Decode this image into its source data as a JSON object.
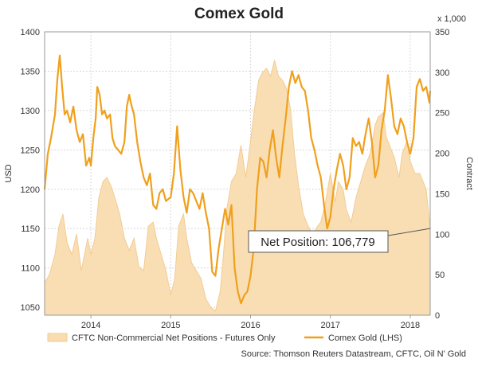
{
  "chart_data": {
    "type": "line",
    "title": "Comex Gold",
    "left_axis": {
      "label": "USD",
      "ylim": [
        1040,
        1400
      ],
      "ticks": [
        1050,
        1100,
        1150,
        1200,
        1250,
        1300,
        1350,
        1400
      ]
    },
    "right_axis": {
      "label": "Contract",
      "unit_note": "x 1,000",
      "ylim": [
        0,
        350
      ],
      "ticks": [
        0,
        50,
        100,
        150,
        200,
        250,
        300,
        350
      ]
    },
    "x_ticks": [
      {
        "label": "2014",
        "x": 2014.0
      },
      {
        "label": "2015",
        "x": 2015.0
      },
      {
        "label": "2016",
        "x": 2016.0
      },
      {
        "label": "2017",
        "x": 2017.0
      },
      {
        "label": "2018",
        "x": 2018.0
      }
    ],
    "xlim": [
      2013.42,
      2018.25
    ],
    "series": [
      {
        "name": "CFTC Non-Commercial Net Positions - Futures Only",
        "axis": "right",
        "kind": "area",
        "color": "#f9ddb1",
        "edge_color": "#f2c98e",
        "points": [
          [
            2013.42,
            40
          ],
          [
            2013.48,
            50
          ],
          [
            2013.55,
            75
          ],
          [
            2013.6,
            110
          ],
          [
            2013.65,
            125
          ],
          [
            2013.7,
            90
          ],
          [
            2013.76,
            75
          ],
          [
            2013.82,
            100
          ],
          [
            2013.88,
            55
          ],
          [
            2013.92,
            75
          ],
          [
            2013.96,
            95
          ],
          [
            2014.0,
            75
          ],
          [
            2014.05,
            95
          ],
          [
            2014.1,
            145
          ],
          [
            2014.15,
            165
          ],
          [
            2014.2,
            170
          ],
          [
            2014.25,
            160
          ],
          [
            2014.3,
            145
          ],
          [
            2014.36,
            125
          ],
          [
            2014.42,
            95
          ],
          [
            2014.48,
            80
          ],
          [
            2014.54,
            95
          ],
          [
            2014.6,
            60
          ],
          [
            2014.66,
            55
          ],
          [
            2014.72,
            110
          ],
          [
            2014.78,
            115
          ],
          [
            2014.82,
            95
          ],
          [
            2014.88,
            75
          ],
          [
            2014.94,
            55
          ],
          [
            2015.0,
            25
          ],
          [
            2015.05,
            45
          ],
          [
            2015.1,
            110
          ],
          [
            2015.16,
            125
          ],
          [
            2015.2,
            95
          ],
          [
            2015.26,
            65
          ],
          [
            2015.32,
            55
          ],
          [
            2015.38,
            45
          ],
          [
            2015.44,
            20
          ],
          [
            2015.5,
            10
          ],
          [
            2015.56,
            5
          ],
          [
            2015.62,
            30
          ],
          [
            2015.66,
            75
          ],
          [
            2015.7,
            130
          ],
          [
            2015.76,
            165
          ],
          [
            2015.82,
            175
          ],
          [
            2015.88,
            210
          ],
          [
            2015.94,
            170
          ],
          [
            2016.0,
            215
          ],
          [
            2016.05,
            255
          ],
          [
            2016.1,
            290
          ],
          [
            2016.15,
            300
          ],
          [
            2016.2,
            305
          ],
          [
            2016.25,
            295
          ],
          [
            2016.3,
            315
          ],
          [
            2016.35,
            295
          ],
          [
            2016.4,
            290
          ],
          [
            2016.45,
            280
          ],
          [
            2016.5,
            255
          ],
          [
            2016.55,
            200
          ],
          [
            2016.6,
            160
          ],
          [
            2016.66,
            125
          ],
          [
            2016.72,
            110
          ],
          [
            2016.78,
            100
          ],
          [
            2016.84,
            110
          ],
          [
            2016.88,
            115
          ],
          [
            2016.94,
            140
          ],
          [
            2017.0,
            175
          ],
          [
            2017.06,
            140
          ],
          [
            2017.1,
            165
          ],
          [
            2017.16,
            155
          ],
          [
            2017.2,
            130
          ],
          [
            2017.26,
            115
          ],
          [
            2017.32,
            145
          ],
          [
            2017.38,
            165
          ],
          [
            2017.44,
            185
          ],
          [
            2017.5,
            200
          ],
          [
            2017.56,
            235
          ],
          [
            2017.6,
            245
          ],
          [
            2017.66,
            250
          ],
          [
            2017.7,
            220
          ],
          [
            2017.76,
            205
          ],
          [
            2017.8,
            195
          ],
          [
            2017.86,
            170
          ],
          [
            2017.9,
            200
          ],
          [
            2017.96,
            215
          ],
          [
            2018.0,
            190
          ],
          [
            2018.06,
            175
          ],
          [
            2018.12,
            175
          ],
          [
            2018.2,
            155
          ],
          [
            2018.25,
            107
          ]
        ]
      },
      {
        "name": "Comex Gold (LHS)",
        "axis": "left",
        "kind": "line",
        "color": "#f0a01c",
        "points": [
          [
            2013.42,
            1200
          ],
          [
            2013.46,
            1245
          ],
          [
            2013.5,
            1265
          ],
          [
            2013.55,
            1295
          ],
          [
            2013.58,
            1340
          ],
          [
            2013.61,
            1370
          ],
          [
            2013.64,
            1330
          ],
          [
            2013.67,
            1295
          ],
          [
            2013.7,
            1300
          ],
          [
            2013.74,
            1285
          ],
          [
            2013.78,
            1305
          ],
          [
            2013.82,
            1275
          ],
          [
            2013.86,
            1260
          ],
          [
            2013.9,
            1270
          ],
          [
            2013.94,
            1230
          ],
          [
            2013.98,
            1240
          ],
          [
            2014.0,
            1230
          ],
          [
            2014.03,
            1265
          ],
          [
            2014.06,
            1290
          ],
          [
            2014.08,
            1330
          ],
          [
            2014.11,
            1320
          ],
          [
            2014.14,
            1295
          ],
          [
            2014.17,
            1300
          ],
          [
            2014.2,
            1290
          ],
          [
            2014.24,
            1295
          ],
          [
            2014.27,
            1265
          ],
          [
            2014.3,
            1255
          ],
          [
            2014.34,
            1250
          ],
          [
            2014.38,
            1245
          ],
          [
            2014.42,
            1260
          ],
          [
            2014.45,
            1305
          ],
          [
            2014.48,
            1320
          ],
          [
            2014.5,
            1310
          ],
          [
            2014.54,
            1295
          ],
          [
            2014.58,
            1260
          ],
          [
            2014.62,
            1235
          ],
          [
            2014.66,
            1215
          ],
          [
            2014.7,
            1205
          ],
          [
            2014.74,
            1220
          ],
          [
            2014.78,
            1180
          ],
          [
            2014.82,
            1175
          ],
          [
            2014.86,
            1195
          ],
          [
            2014.9,
            1200
          ],
          [
            2014.94,
            1185
          ],
          [
            2015.0,
            1190
          ],
          [
            2015.04,
            1220
          ],
          [
            2015.08,
            1280
          ],
          [
            2015.12,
            1225
          ],
          [
            2015.16,
            1190
          ],
          [
            2015.2,
            1170
          ],
          [
            2015.24,
            1200
          ],
          [
            2015.28,
            1195
          ],
          [
            2015.32,
            1185
          ],
          [
            2015.36,
            1175
          ],
          [
            2015.4,
            1195
          ],
          [
            2015.44,
            1170
          ],
          [
            2015.48,
            1150
          ],
          [
            2015.52,
            1095
          ],
          [
            2015.56,
            1090
          ],
          [
            2015.6,
            1125
          ],
          [
            2015.64,
            1150
          ],
          [
            2015.68,
            1175
          ],
          [
            2015.72,
            1155
          ],
          [
            2015.76,
            1180
          ],
          [
            2015.8,
            1100
          ],
          [
            2015.84,
            1070
          ],
          [
            2015.88,
            1055
          ],
          [
            2015.92,
            1065
          ],
          [
            2015.96,
            1070
          ],
          [
            2016.0,
            1090
          ],
          [
            2016.04,
            1125
          ],
          [
            2016.08,
            1200
          ],
          [
            2016.12,
            1240
          ],
          [
            2016.16,
            1235
          ],
          [
            2016.2,
            1215
          ],
          [
            2016.24,
            1250
          ],
          [
            2016.28,
            1275
          ],
          [
            2016.32,
            1240
          ],
          [
            2016.36,
            1215
          ],
          [
            2016.4,
            1255
          ],
          [
            2016.44,
            1290
          ],
          [
            2016.48,
            1330
          ],
          [
            2016.52,
            1350
          ],
          [
            2016.56,
            1335
          ],
          [
            2016.6,
            1345
          ],
          [
            2016.64,
            1330
          ],
          [
            2016.68,
            1325
          ],
          [
            2016.72,
            1300
          ],
          [
            2016.76,
            1265
          ],
          [
            2016.8,
            1250
          ],
          [
            2016.84,
            1230
          ],
          [
            2016.88,
            1215
          ],
          [
            2016.92,
            1180
          ],
          [
            2016.96,
            1150
          ],
          [
            2017.0,
            1165
          ],
          [
            2017.04,
            1200
          ],
          [
            2017.08,
            1225
          ],
          [
            2017.12,
            1245
          ],
          [
            2017.16,
            1230
          ],
          [
            2017.2,
            1200
          ],
          [
            2017.24,
            1215
          ],
          [
            2017.28,
            1265
          ],
          [
            2017.32,
            1255
          ],
          [
            2017.36,
            1260
          ],
          [
            2017.4,
            1245
          ],
          [
            2017.44,
            1270
          ],
          [
            2017.48,
            1290
          ],
          [
            2017.52,
            1260
          ],
          [
            2017.56,
            1215
          ],
          [
            2017.6,
            1230
          ],
          [
            2017.64,
            1275
          ],
          [
            2017.68,
            1300
          ],
          [
            2017.72,
            1345
          ],
          [
            2017.76,
            1315
          ],
          [
            2017.8,
            1280
          ],
          [
            2017.84,
            1270
          ],
          [
            2017.88,
            1290
          ],
          [
            2017.92,
            1280
          ],
          [
            2017.96,
            1260
          ],
          [
            2018.0,
            1245
          ],
          [
            2018.04,
            1265
          ],
          [
            2018.08,
            1330
          ],
          [
            2018.12,
            1340
          ],
          [
            2018.16,
            1325
          ],
          [
            2018.2,
            1330
          ],
          [
            2018.24,
            1310
          ],
          [
            2018.25,
            1325
          ]
        ]
      }
    ],
    "callout": {
      "text": "Net Position: 106,779",
      "x": 2018.25,
      "y_right": 107,
      "color": "#444444"
    },
    "legend": {
      "placement": "bottom",
      "entries": [
        "CFTC Non-Commercial Net Positions - Futures Only",
        "Comex Gold (LHS)"
      ]
    },
    "source": "Source: Thomson Reuters Datastream, CFTC, Oil N' Gold",
    "grid": true,
    "plot_background": "#ffffff",
    "grid_color": "#d8d8d8"
  }
}
